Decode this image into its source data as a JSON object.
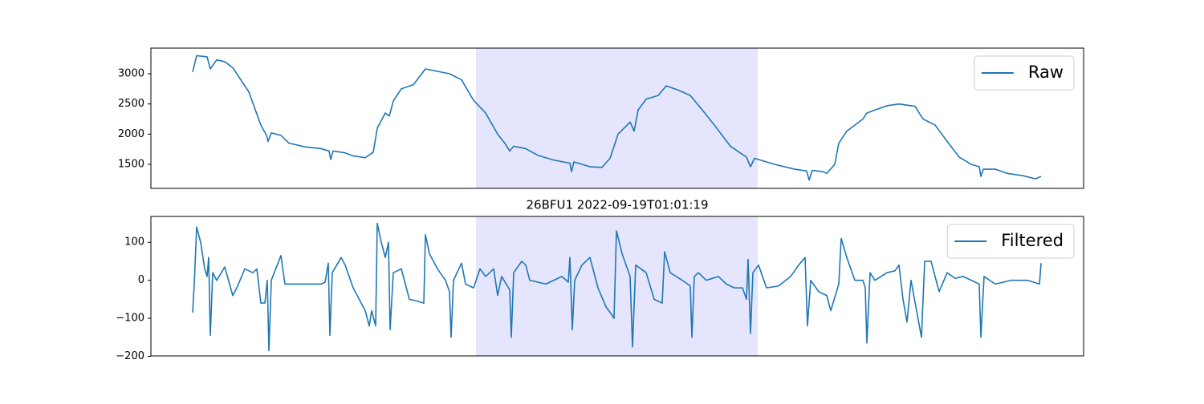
{
  "chart_data": [
    {
      "type": "line",
      "x": [
        0,
        5,
        18,
        22,
        30,
        40,
        50,
        60,
        70,
        85,
        92,
        94,
        98,
        110,
        120,
        140,
        160,
        170,
        172,
        175,
        190,
        200,
        215,
        225,
        230,
        240,
        245,
        250,
        260,
        275,
        290,
        305,
        320,
        335,
        350,
        365,
        380,
        390,
        395,
        400,
        415,
        430,
        450,
        470,
        472,
        475,
        495,
        510,
        520,
        530,
        545,
        550,
        555,
        565,
        580,
        590,
        605,
        620,
        635,
        650,
        670,
        690,
        695,
        700,
        710,
        725,
        750,
        765,
        768,
        772,
        785,
        790,
        800,
        805,
        815,
        835,
        840,
        850,
        865,
        880,
        900,
        910,
        925,
        940,
        955,
        970,
        980,
        982,
        985,
        1000,
        1015,
        1035,
        1050,
        1057
      ],
      "series": [
        {
          "name": "Raw",
          "color": "#1f77b4",
          "values": [
            3030,
            3300,
            3280,
            3080,
            3230,
            3200,
            3100,
            2900,
            2700,
            2150,
            1980,
            1880,
            2020,
            1980,
            1850,
            1790,
            1760,
            1720,
            1580,
            1720,
            1690,
            1640,
            1610,
            1700,
            2100,
            2350,
            2300,
            2550,
            2750,
            2820,
            3080,
            3040,
            3000,
            2900,
            2560,
            2350,
            2000,
            1830,
            1720,
            1800,
            1760,
            1650,
            1570,
            1520,
            1380,
            1540,
            1460,
            1450,
            1600,
            2000,
            2200,
            2050,
            2400,
            2580,
            2640,
            2800,
            2730,
            2640,
            2400,
            2150,
            1800,
            1620,
            1460,
            1600,
            1560,
            1500,
            1420,
            1390,
            1240,
            1400,
            1380,
            1350,
            1500,
            1850,
            2050,
            2250,
            2350,
            2400,
            2470,
            2500,
            2460,
            2250,
            2150,
            1880,
            1620,
            1500,
            1460,
            1300,
            1420,
            1420,
            1350,
            1310,
            1260,
            1300
          ]
        }
      ],
      "xlim": [
        -52,
        1110
      ],
      "ylim": [
        1102,
        3425
      ],
      "yticks": [
        1500,
        2000,
        2500,
        3000
      ],
      "highlight": [
        353,
        704
      ],
      "legend": "upper right"
    },
    {
      "type": "line",
      "title": "26BFU1 2022-09-19T01:01:19",
      "x": [
        0,
        2,
        5,
        10,
        15,
        18,
        20,
        22,
        25,
        30,
        40,
        50,
        55,
        65,
        75,
        80,
        85,
        90,
        93,
        95,
        98,
        110,
        115,
        140,
        160,
        165,
        169,
        171,
        174,
        185,
        190,
        200,
        215,
        220,
        223,
        228,
        230,
        235,
        240,
        244,
        246,
        250,
        260,
        265,
        270,
        280,
        288,
        290,
        295,
        305,
        315,
        320,
        322,
        325,
        335,
        340,
        350,
        358,
        365,
        375,
        380,
        385,
        395,
        397,
        400,
        410,
        415,
        420,
        440,
        460,
        468,
        470,
        473,
        476,
        485,
        495,
        505,
        515,
        522,
        525,
        528,
        535,
        545,
        548,
        552,
        565,
        575,
        585,
        588,
        595,
        610,
        620,
        622,
        625,
        630,
        640,
        655,
        665,
        675,
        685,
        690,
        692,
        695,
        698,
        705,
        715,
        730,
        745,
        755,
        763,
        766,
        770,
        780,
        790,
        795,
        805,
        808,
        815,
        825,
        835,
        838,
        840,
        844,
        850,
        865,
        875,
        880,
        885,
        890,
        895,
        908,
        912,
        920,
        930,
        940,
        950,
        960,
        980,
        982,
        986,
        1000,
        1020,
        1040,
        1055,
        1057
      ],
      "series": [
        {
          "name": "Filtered",
          "color": "#1f77b4",
          "values": [
            -85,
            -10,
            140,
            100,
            30,
            10,
            60,
            -145,
            20,
            0,
            35,
            -40,
            -20,
            30,
            20,
            30,
            -60,
            -60,
            0,
            -185,
            0,
            65,
            -10,
            -10,
            -10,
            -5,
            45,
            -145,
            20,
            60,
            40,
            -20,
            -80,
            -120,
            -80,
            -120,
            150,
            100,
            60,
            100,
            -130,
            20,
            30,
            -10,
            -50,
            -55,
            -60,
            120,
            70,
            30,
            0,
            -30,
            -150,
            0,
            45,
            -10,
            -20,
            30,
            10,
            30,
            -40,
            10,
            -25,
            -150,
            20,
            50,
            40,
            0,
            -10,
            10,
            -5,
            60,
            -130,
            0,
            40,
            60,
            -20,
            -70,
            -90,
            -100,
            130,
            70,
            10,
            -175,
            40,
            20,
            -50,
            -60,
            75,
            20,
            0,
            -15,
            -150,
            10,
            20,
            0,
            10,
            -10,
            -20,
            -20,
            -50,
            55,
            -140,
            20,
            40,
            -20,
            -15,
            10,
            40,
            60,
            -120,
            0,
            -30,
            -40,
            -80,
            -10,
            110,
            60,
            0,
            0,
            -20,
            -165,
            20,
            0,
            20,
            25,
            40,
            -50,
            -110,
            0,
            -150,
            50,
            50,
            -30,
            20,
            5,
            10,
            -10,
            -150,
            10,
            -10,
            0,
            0,
            -10,
            45
          ]
        }
      ],
      "xlim": [
        -52,
        1110
      ],
      "ylim": [
        -199,
        168
      ],
      "yticks": [
        {
          "value": -200,
          "label": "−200"
        },
        {
          "value": -100,
          "label": "−100"
        },
        0,
        100
      ],
      "highlight": [
        353,
        704
      ],
      "legend": "upper right"
    }
  ]
}
